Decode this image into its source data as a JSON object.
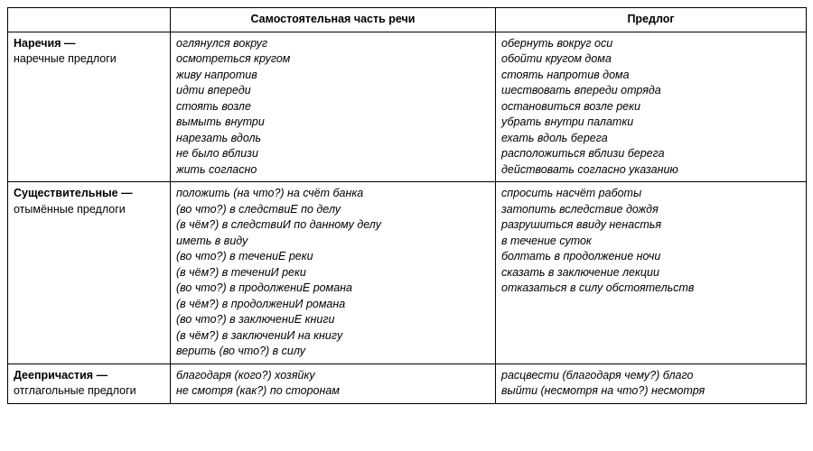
{
  "headers": {
    "col1": "",
    "col2": "Самостоятельная часть речи",
    "col3": "Предлог"
  },
  "rows": [
    {
      "label_main": "Наречия —",
      "label_sub": "наречные предлоги",
      "independent": "оглянулся вокруг\nосмотреться кругом\nживу напротив\nидти впереди\nстоять возле\nвымыть внутри\nнарезать вдоль\nне было вблизи\nжить согласно",
      "preposition": "обернуть вокруг оси\nобойти кругом дома\nстоять напротив дома\nшествовать впереди отряда\nостановиться возле реки\nубрать внутри палатки\nехать вдоль берега\nрасположиться вблизи берега\nдействовать согласно указанию"
    },
    {
      "label_main": "Существительные —",
      "label_sub": "отымённые предлоги",
      "independent": "положить (на что?) на счёт банка\n(во что?) в следствиЕ по делу\n(в чём?) в следствиИ по данному делу\nиметь в виду\n(во что?) в течениЕ реки\n(в чём?) в течениИ реки\n(во что?) в продолжениЕ романа\n(в чём?) в продолжениИ романа\n(во что?) в заключениЕ книги\n(в чём?) в заключениИ на книгу\nверить (во что?) в силу",
      "preposition": "спросить насчёт работы\nзатопить вследствие дождя\nразрушиться ввиду ненастья\nв течение суток\nболтать в продолжение ночи\nсказать в заключение лекции\nотказаться в силу обстоятельств"
    },
    {
      "label_main": "Деепричастия —",
      "label_sub": "отглагольные предлоги",
      "independent": "благодаря (кого?) хозяйку\nне смотря (как?) по сторонам",
      "preposition": "расцвести (благодаря чему?) благо\nвыйти (несмотря на что?) несмотря"
    }
  ]
}
